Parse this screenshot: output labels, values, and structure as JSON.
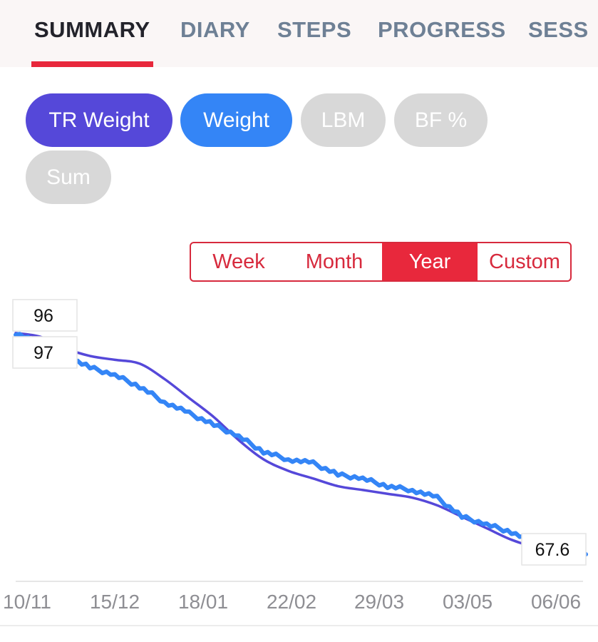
{
  "tabs": [
    {
      "label": "SUMMARY",
      "active": true
    },
    {
      "label": "DIARY",
      "active": false
    },
    {
      "label": "STEPS",
      "active": false
    },
    {
      "label": "PROGRESS",
      "active": false
    },
    {
      "label": "SESS",
      "active": false
    }
  ],
  "chips": [
    {
      "label": "TR Weight",
      "selected": true,
      "color": "#5548d9"
    },
    {
      "label": "Weight",
      "selected": true,
      "color": "#3485f6"
    },
    {
      "label": "LBM",
      "selected": false,
      "color": "#d8d8d8"
    },
    {
      "label": "BF %",
      "selected": false,
      "color": "#d8d8d8"
    },
    {
      "label": "Sum",
      "selected": false,
      "color": "#d8d8d8"
    }
  ],
  "range": {
    "options": [
      "Week",
      "Month",
      "Year",
      "Custom"
    ],
    "selected": "Year"
  },
  "chart_data": {
    "type": "line",
    "x_tick_labels": [
      "10/11",
      "15/12",
      "18/01",
      "22/02",
      "29/03",
      "03/05",
      "06/06"
    ],
    "value_labels": [
      "96",
      "97",
      "67.6"
    ],
    "series": [
      {
        "key": "weight",
        "color": "#3485f6",
        "values": [
          96.5,
          95.0,
          93.5,
          92.0,
          91.0,
          89.5,
          87.5,
          86.0,
          84.5,
          83.0,
          81.0,
          80.0,
          79.5,
          78.0,
          77.5,
          76.5,
          76.0,
          75.0,
          72.5,
          71.5,
          70.5,
          69.0,
          68.5,
          67.6
        ]
      },
      {
        "key": "tr_weight",
        "color": "#5548d9",
        "values": [
          96.5,
          96.0,
          94.5,
          93.5,
          93.0,
          92.5,
          90.5,
          88.0,
          85.5,
          82.5,
          80.0,
          78.5,
          77.5,
          76.5,
          76.0,
          75.5,
          75.0,
          74.0,
          72.5,
          71.0,
          69.5,
          68.5,
          68.0,
          67.5
        ]
      }
    ],
    "ylim": [
      65,
      99
    ],
    "grid": false
  },
  "colors": {
    "accent": "#e8283c",
    "tab_active": "#23232b",
    "tab_inactive": "#6e8095"
  }
}
